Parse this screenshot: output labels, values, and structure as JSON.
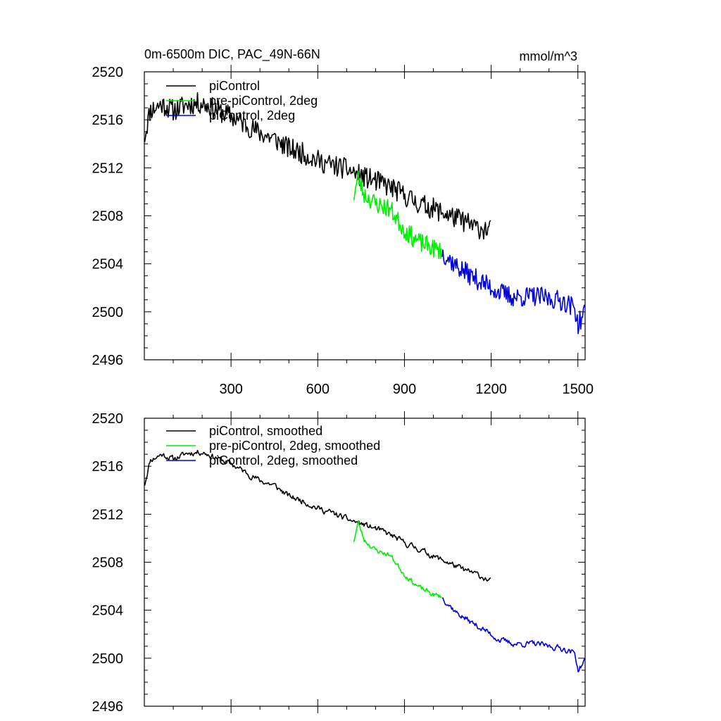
{
  "figure": {
    "title_left": "0m-6500m DIC, PAC_49N-66N",
    "title_right": "mmol/m^3"
  },
  "chart_data": [
    {
      "type": "line",
      "panel": "top",
      "xlim": [
        0,
        1525
      ],
      "ylim": [
        2496,
        2520
      ],
      "xticks": [
        300,
        600,
        900,
        1200,
        1500
      ],
      "xtick_labels": [
        "300",
        "600",
        "900",
        "1200",
        "1500"
      ],
      "yticks": [
        2496,
        2500,
        2504,
        2508,
        2512,
        2516,
        2520
      ],
      "ytick_labels": [
        "2496",
        "2500",
        "2504",
        "2508",
        "2512",
        "2516",
        "2520"
      ],
      "legend_position": "top-left",
      "series": [
        {
          "name": "piControl",
          "color": "#000000",
          "x_start": 1,
          "x_end": 1200,
          "anchors": [
            [
              1,
              2514.6
            ],
            [
              20,
              2516.8
            ],
            [
              60,
              2517.3
            ],
            [
              100,
              2516.8
            ],
            [
              150,
              2517.3
            ],
            [
              200,
              2517.4
            ],
            [
              250,
              2516.8
            ],
            [
              300,
              2516.3
            ],
            [
              350,
              2515.6
            ],
            [
              400,
              2514.9
            ],
            [
              450,
              2514.4
            ],
            [
              500,
              2513.6
            ],
            [
              550,
              2513.2
            ],
            [
              600,
              2512.6
            ],
            [
              650,
              2512.2
            ],
            [
              700,
              2511.9
            ],
            [
              750,
              2511.3
            ],
            [
              800,
              2510.9
            ],
            [
              850,
              2510.4
            ],
            [
              900,
              2509.7
            ],
            [
              950,
              2509.0
            ],
            [
              1000,
              2508.6
            ],
            [
              1050,
              2508.1
            ],
            [
              1100,
              2507.6
            ],
            [
              1150,
              2507.0
            ],
            [
              1200,
              2506.8
            ]
          ],
          "noise": 0.9,
          "seed": 11
        },
        {
          "name": "pre-piControl, 2deg",
          "color": "#00ee00",
          "x_start": 725,
          "x_end": 1030,
          "anchors": [
            [
              725,
              2509.7
            ],
            [
              740,
              2511.2
            ],
            [
              760,
              2509.8
            ],
            [
              800,
              2509.0
            ],
            [
              850,
              2508.6
            ],
            [
              900,
              2506.8
            ],
            [
              950,
              2505.8
            ],
            [
              1000,
              2505.3
            ],
            [
              1030,
              2505.0
            ]
          ],
          "noise": 0.8,
          "seed": 23
        },
        {
          "name": "piControl, 2deg",
          "color": "#0000dd",
          "x_start": 1030,
          "x_end": 1525,
          "anchors": [
            [
              1030,
              2505.0
            ],
            [
              1080,
              2503.8
            ],
            [
              1130,
              2503.0
            ],
            [
              1180,
              2502.3
            ],
            [
              1230,
              2501.6
            ],
            [
              1280,
              2501.2
            ],
            [
              1350,
              2501.3
            ],
            [
              1400,
              2501.1
            ],
            [
              1450,
              2500.9
            ],
            [
              1490,
              2500.3
            ],
            [
              1500,
              2498.9
            ],
            [
              1525,
              2500.0
            ]
          ],
          "noise": 0.85,
          "seed": 37
        }
      ]
    },
    {
      "type": "line",
      "panel": "bottom",
      "xlim": [
        0,
        1525
      ],
      "ylim": [
        2496,
        2520
      ],
      "xticks": [
        300,
        600,
        900,
        1200,
        1500
      ],
      "xtick_labels": [],
      "yticks": [
        2496,
        2500,
        2504,
        2508,
        2512,
        2516,
        2520
      ],
      "ytick_labels": [
        "2496",
        "2500",
        "2504",
        "2508",
        "2512",
        "2516",
        "2520"
      ],
      "legend_position": "top-left",
      "series": [
        {
          "name": "piControl, smoothed",
          "color": "#000000",
          "x_start": 1,
          "x_end": 1200,
          "anchors": [
            [
              1,
              2514.5
            ],
            [
              20,
              2516.5
            ],
            [
              60,
              2517.0
            ],
            [
              100,
              2516.6
            ],
            [
              150,
              2517.1
            ],
            [
              200,
              2517.2
            ],
            [
              250,
              2516.7
            ],
            [
              300,
              2516.2
            ],
            [
              350,
              2515.5
            ],
            [
              400,
              2514.8
            ],
            [
              450,
              2514.4
            ],
            [
              500,
              2513.5
            ],
            [
              550,
              2513.1
            ],
            [
              600,
              2512.5
            ],
            [
              650,
              2512.1
            ],
            [
              700,
              2511.6
            ],
            [
              750,
              2511.2
            ],
            [
              800,
              2510.8
            ],
            [
              850,
              2510.3
            ],
            [
              900,
              2509.6
            ],
            [
              950,
              2509.1
            ],
            [
              1000,
              2508.5
            ],
            [
              1050,
              2508.0
            ],
            [
              1100,
              2507.4
            ],
            [
              1150,
              2507.0
            ],
            [
              1200,
              2506.4
            ]
          ],
          "noise": 0.45,
          "seed": 11
        },
        {
          "name": "pre-piControl, 2deg, smoothed",
          "color": "#00ee00",
          "x_start": 725,
          "x_end": 1030,
          "anchors": [
            [
              725,
              2509.8
            ],
            [
              740,
              2511.3
            ],
            [
              760,
              2509.9
            ],
            [
              800,
              2509.0
            ],
            [
              850,
              2508.6
            ],
            [
              900,
              2507.0
            ],
            [
              950,
              2505.9
            ],
            [
              1000,
              2505.3
            ],
            [
              1030,
              2505.1
            ]
          ],
          "noise": 0.4,
          "seed": 23
        },
        {
          "name": "piControl, 2deg, smoothed",
          "color": "#0000dd",
          "x_start": 1030,
          "x_end": 1525,
          "anchors": [
            [
              1030,
              2505.1
            ],
            [
              1080,
              2503.8
            ],
            [
              1130,
              2503.0
            ],
            [
              1180,
              2502.3
            ],
            [
              1230,
              2501.5
            ],
            [
              1280,
              2501.2
            ],
            [
              1350,
              2501.2
            ],
            [
              1400,
              2501.0
            ],
            [
              1450,
              2500.8
            ],
            [
              1490,
              2500.4
            ],
            [
              1500,
              2499.0
            ],
            [
              1525,
              2499.8
            ]
          ],
          "noise": 0.45,
          "seed": 37
        }
      ]
    }
  ]
}
